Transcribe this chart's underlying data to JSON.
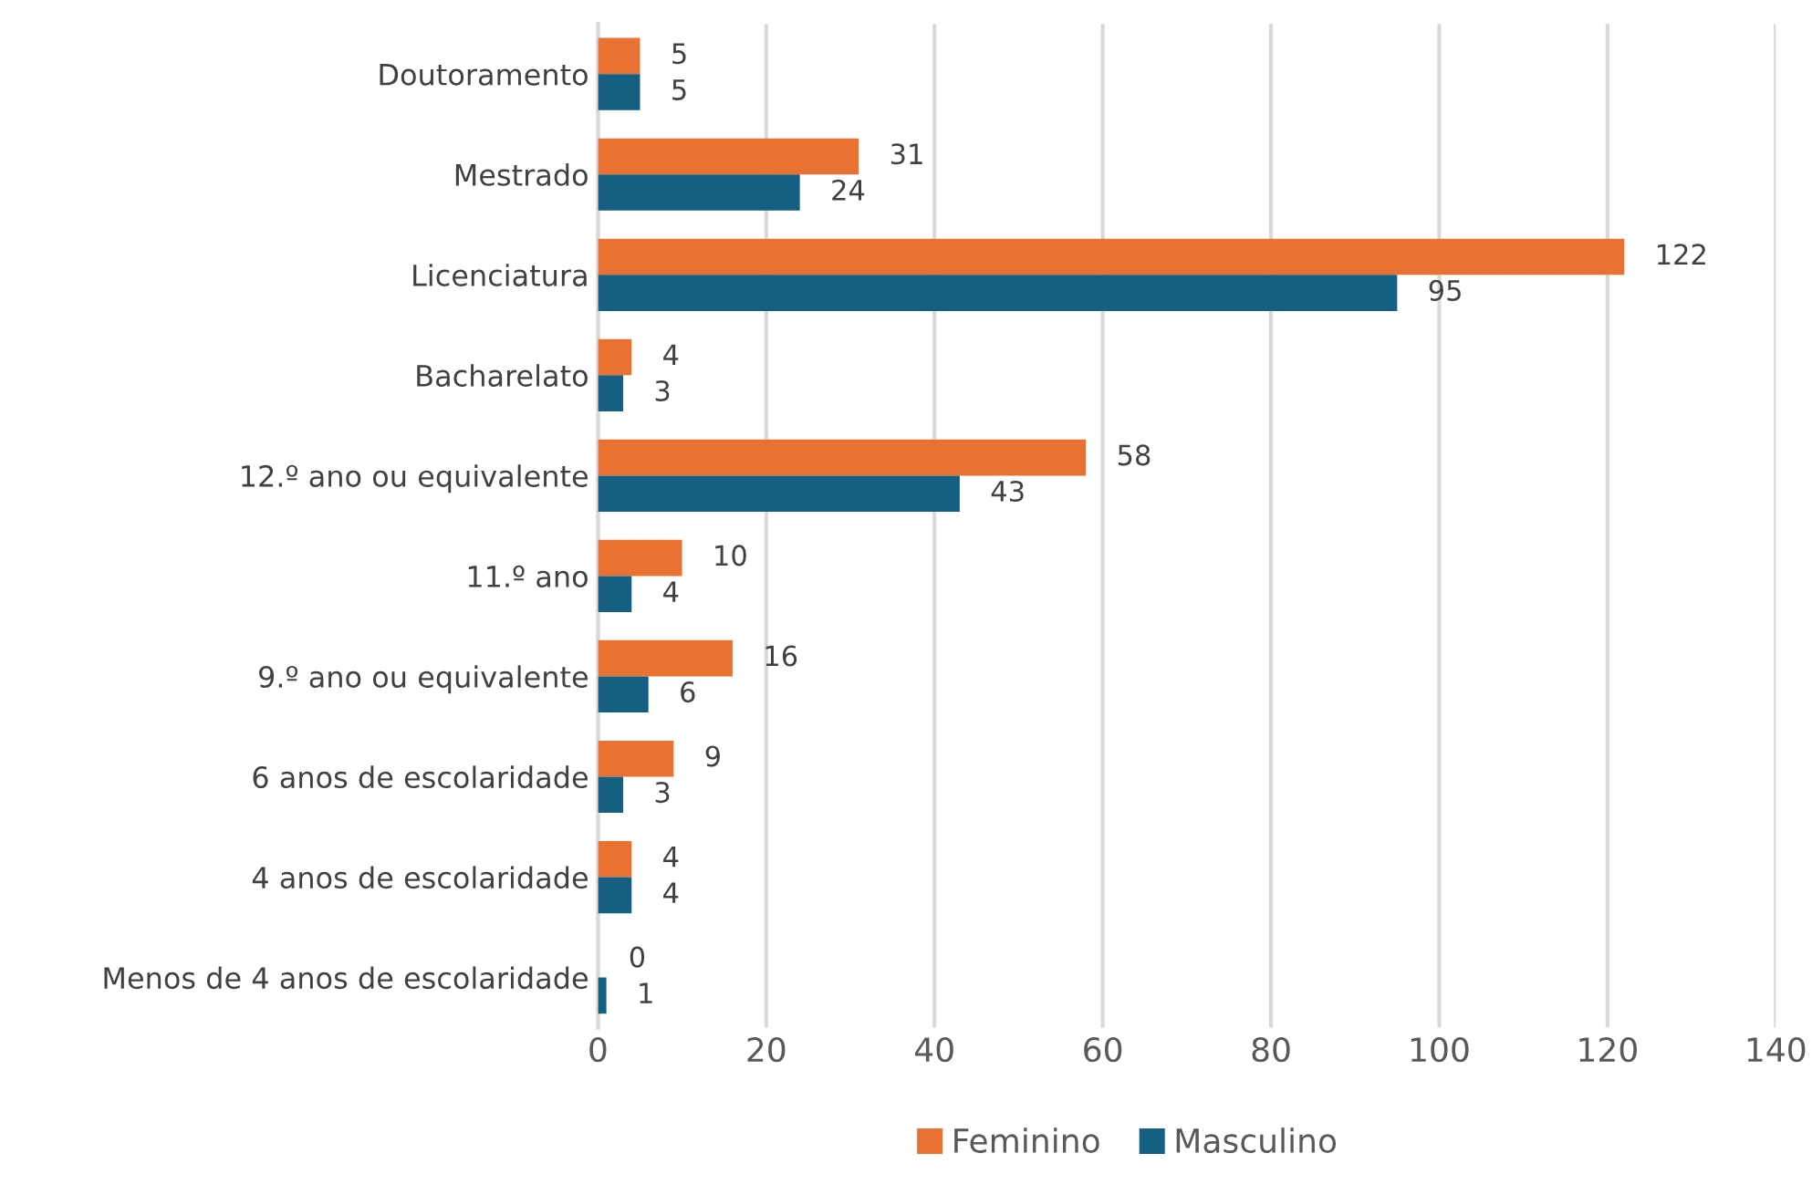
{
  "chart_data": {
    "type": "bar",
    "orientation": "horizontal",
    "categories": [
      "Doutoramento",
      "Mestrado",
      "Licenciatura",
      "Bacharelato",
      "12.º ano ou equivalente",
      "11.º ano",
      "9.º ano ou equivalente",
      "6 anos de escolaridade",
      "4 anos de escolaridade",
      "Menos de 4 anos de escolaridade"
    ],
    "series": [
      {
        "name": "Feminino",
        "color": "#e97132",
        "values": [
          5,
          31,
          122,
          4,
          58,
          10,
          16,
          9,
          4,
          0
        ]
      },
      {
        "name": "Masculino",
        "color": "#156082",
        "values": [
          5,
          24,
          95,
          3,
          43,
          4,
          6,
          3,
          4,
          1
        ]
      }
    ],
    "xlim": [
      0,
      140
    ],
    "xticks": [
      0,
      20,
      40,
      60,
      80,
      100,
      120,
      140
    ],
    "grid": "x",
    "legend": "bottom",
    "data_labels": true
  }
}
